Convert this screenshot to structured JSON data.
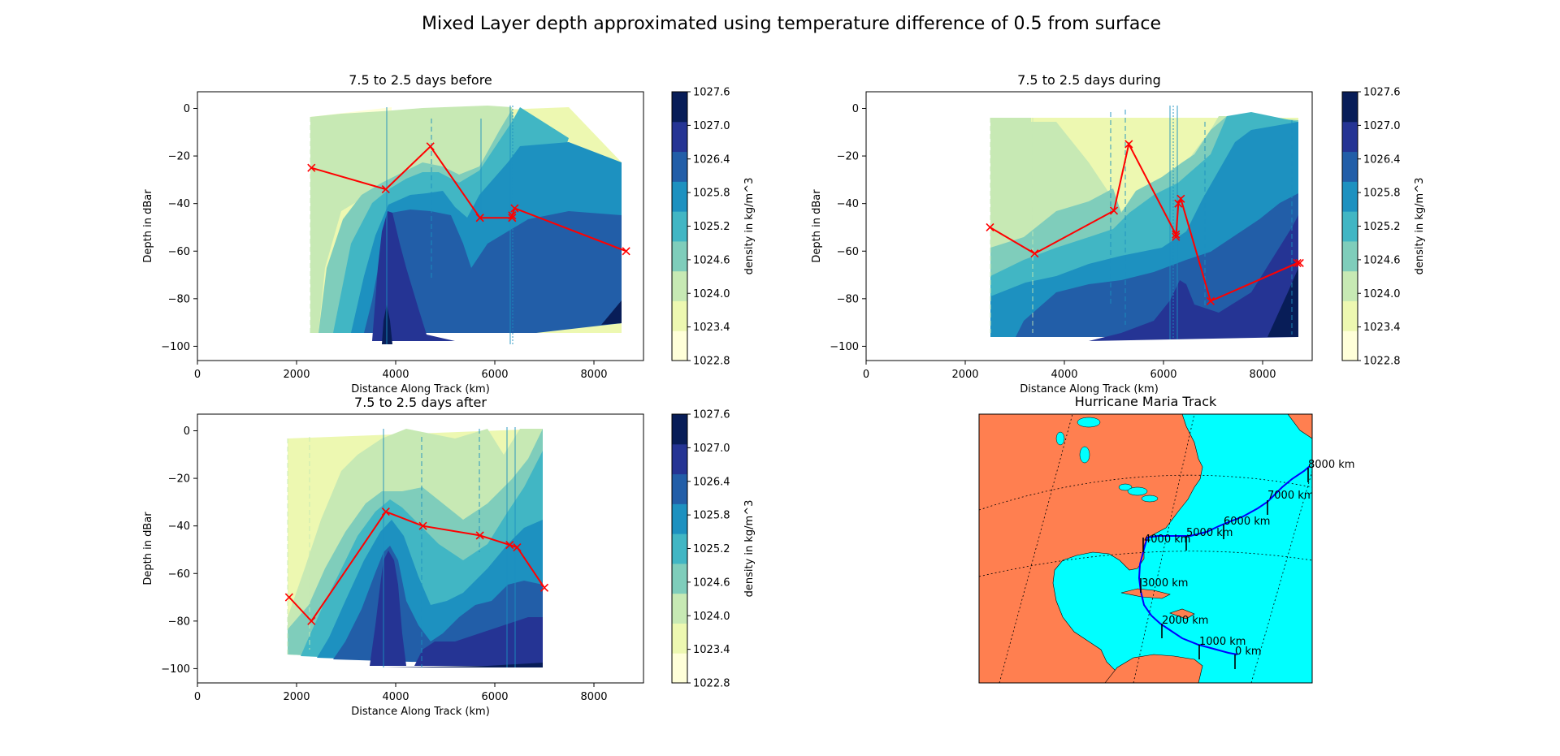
{
  "figure_title": "Mixed Layer depth approximated using temperature difference of 0.5 from surface",
  "colors": {
    "mld_line": "#ff0000",
    "track_line": "#0000ff",
    "ocean": "#00ffff",
    "land": "#ff7f50",
    "colormap": [
      "#ffffd9",
      "#edf8b1",
      "#c7e9b4",
      "#7fcdbb",
      "#41b6c4",
      "#1d91c0",
      "#225ea8",
      "#253494",
      "#081d58"
    ]
  },
  "colorbar": {
    "label": "density in kg/m^3",
    "levels": [
      1022.8,
      1023.4,
      1024.0,
      1024.6,
      1025.2,
      1025.8,
      1026.4,
      1027.0,
      1027.6
    ],
    "tick_labels": [
      "1022.8",
      "1023.4",
      "1024.0",
      "1024.6",
      "1025.2",
      "1025.8",
      "1026.4",
      "1027.0",
      "1027.6"
    ]
  },
  "chart_data": [
    {
      "type": "line",
      "title": "7.5 to 2.5 days before",
      "xlabel": "Distance Along Track (km)",
      "ylabel": "Depth in dBar",
      "xlim": [
        0,
        9000
      ],
      "ylim": [
        -106,
        7
      ],
      "xticks": [
        0,
        2000,
        4000,
        6000,
        8000
      ],
      "yticks": [
        0,
        -20,
        -40,
        -60,
        -80,
        -100
      ],
      "grid": false,
      "series": [
        {
          "x": [
            2300,
            3800,
            4700,
            5700,
            6350,
            6350,
            6400,
            8650
          ],
          "y": [
            -25,
            -34,
            -16,
            -46,
            -46,
            -45,
            -42,
            -60
          ]
        }
      ]
    },
    {
      "type": "line",
      "title": "7.5 to 2.5 days during",
      "xlabel": "Distance Along Track (km)",
      "ylabel": "Depth in dBar",
      "xlim": [
        0,
        9000
      ],
      "ylim": [
        -106,
        7
      ],
      "xticks": [
        0,
        2000,
        4000,
        6000,
        8000
      ],
      "yticks": [
        0,
        -20,
        -40,
        -60,
        -80,
        -100
      ],
      "grid": false,
      "series": [
        {
          "x": [
            2500,
            3400,
            5000,
            5300,
            6250,
            6250,
            6300,
            6350,
            6950,
            8700,
            8750
          ],
          "y": [
            -50,
            -61,
            -43,
            -15,
            -53,
            -54,
            -40,
            -38,
            -81,
            -65,
            -65
          ]
        }
      ]
    },
    {
      "type": "line",
      "title": "7.5 to 2.5 days after",
      "xlabel": "Distance Along Track (km)",
      "ylabel": "Depth in dBar",
      "xlim": [
        0,
        9000
      ],
      "ylim": [
        -106,
        7
      ],
      "xticks": [
        0,
        2000,
        4000,
        6000,
        8000
      ],
      "yticks": [
        0,
        -20,
        -40,
        -60,
        -80,
        -100
      ],
      "grid": false,
      "series": [
        {
          "x": [
            1850,
            2300,
            3800,
            4550,
            5700,
            6300,
            6450,
            7000
          ],
          "y": [
            -70,
            -80,
            -34,
            -40,
            -44,
            -48,
            -49,
            -66
          ]
        }
      ]
    }
  ],
  "map": {
    "title": "Hurricane Maria Track",
    "track_labels": [
      "0 km",
      "1000 km",
      "2000 km",
      "3000 km",
      "4000 km",
      "5000 km",
      "6000 km",
      "7000 km",
      "8000 km"
    ]
  }
}
